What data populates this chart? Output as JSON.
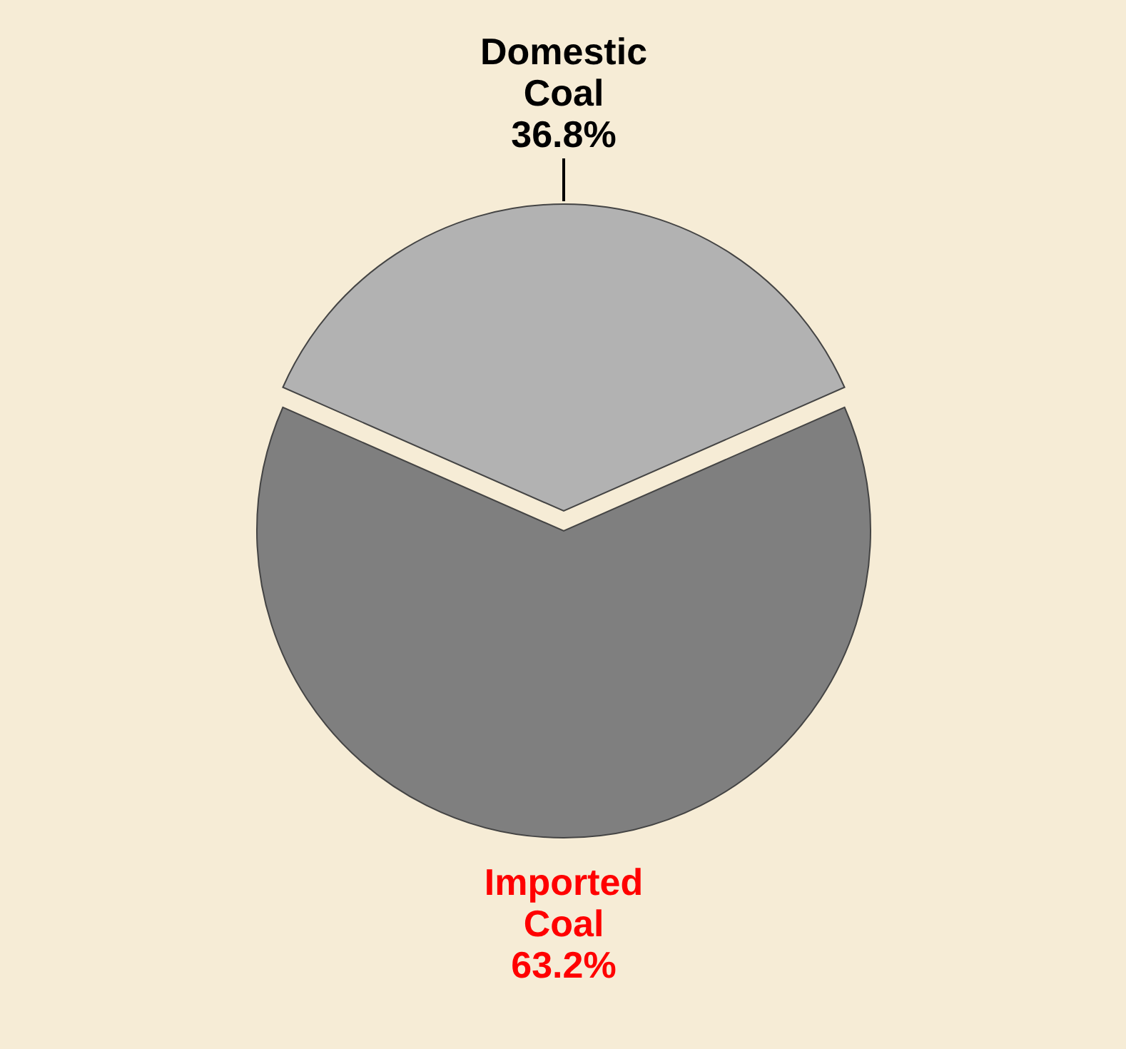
{
  "chart_data": {
    "type": "pie",
    "categories": [
      "Domestic Coal",
      "Imported Coal"
    ],
    "values": [
      36.8,
      63.2
    ],
    "colors": [
      "#b2b2b2",
      "#7f7f7f"
    ],
    "value_labels": [
      "36.8%",
      "63.2%"
    ]
  }
}
